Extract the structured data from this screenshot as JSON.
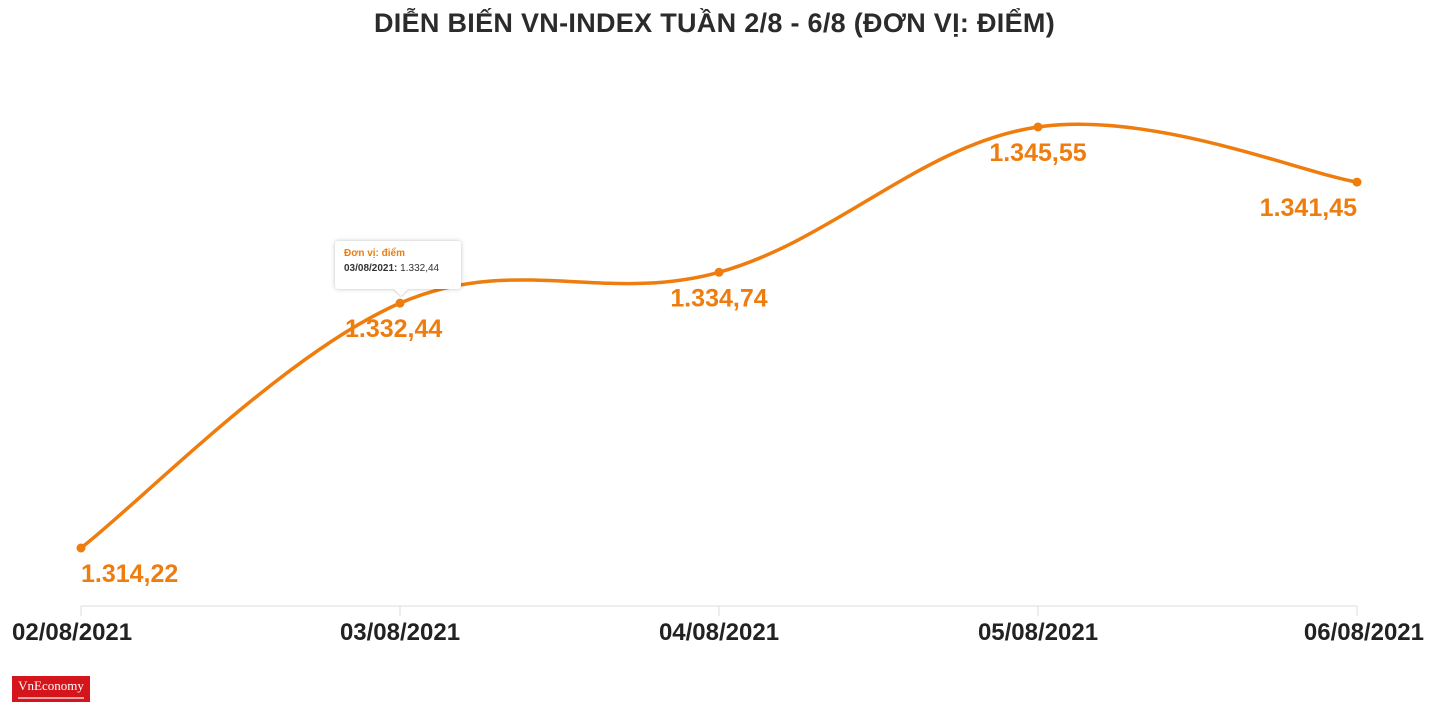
{
  "chart_data": {
    "type": "line",
    "title": "DIỄN BIẾN VN-INDEX TUẦN 2/8 - 6/8 (ĐƠN VỊ: ĐIỂM)",
    "categories": [
      "02/08/2021",
      "03/08/2021",
      "04/08/2021",
      "05/08/2021",
      "06/08/2021"
    ],
    "series": [
      {
        "name": "VN-Index",
        "values": [
          1314.22,
          1332.44,
          1334.74,
          1345.55,
          1341.45
        ],
        "labels": [
          "1.314,22",
          "1.332,44",
          "1.334,74",
          "1.345,55",
          "1.341,45"
        ]
      }
    ],
    "xlabel": "",
    "ylabel": "",
    "ylim": [
      1310,
      1350
    ],
    "grid": false,
    "line_color": "#ee7d0e",
    "label_color": "#ee7d0e",
    "axis_color": "#dddddd"
  },
  "tooltip": {
    "title": "Đơn vị: điểm",
    "date": "03/08/2021:",
    "value": "1.332,44",
    "title_color": "#ee7d0e"
  },
  "logo": {
    "text": "VnEconomy",
    "color": "#d4151c"
  }
}
